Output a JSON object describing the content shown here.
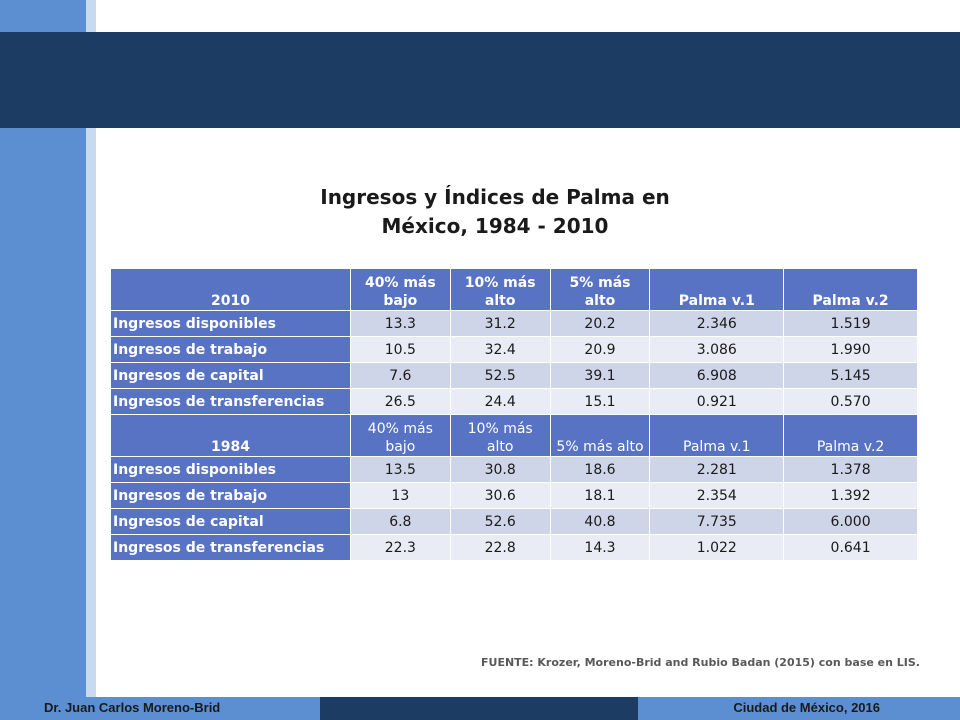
{
  "title": {
    "line1": "Ingresos y Índices de Palma en",
    "line2": "México, 1984 - 2010"
  },
  "table": {
    "col_headers": [
      "40% más bajo",
      "10% más alto",
      "5% más alto",
      "Palma v.1",
      "Palma v.2"
    ],
    "sections": [
      {
        "year": "2010",
        "rows": [
          {
            "label": "Ingresos disponibles",
            "values": [
              "13.3",
              "31.2",
              "20.2",
              "2.346",
              "1.519"
            ]
          },
          {
            "label": "Ingresos de trabajo",
            "values": [
              "10.5",
              "32.4",
              "20.9",
              "3.086",
              "1.990"
            ]
          },
          {
            "label": "Ingresos de capital",
            "values": [
              "7.6",
              "52.5",
              "39.1",
              "6.908",
              "5.145"
            ]
          },
          {
            "label": "Ingresos de transferencias",
            "values": [
              "26.5",
              "24.4",
              "15.1",
              "0.921",
              "0.570"
            ]
          }
        ]
      },
      {
        "year": "1984",
        "rows": [
          {
            "label": "Ingresos disponibles",
            "values": [
              "13.5",
              "30.8",
              "18.6",
              "2.281",
              "1.378"
            ]
          },
          {
            "label": "Ingresos de trabajo",
            "values": [
              "13",
              "30.6",
              "18.1",
              "2.354",
              "1.392"
            ]
          },
          {
            "label": "Ingresos de capital",
            "values": [
              "6.8",
              "52.6",
              "40.8",
              "7.735",
              "6.000"
            ]
          },
          {
            "label": "Ingresos de transferencias",
            "values": [
              "22.3",
              "22.8",
              "14.3",
              "1.022",
              "0.641"
            ]
          }
        ]
      }
    ]
  },
  "source": "FUENTE: Krozer, Moreno-Brid and Rubio Badan (2015) con base en LIS.",
  "footer": {
    "author": "Dr. Juan Carlos Moreno-Brid",
    "place_date": "Ciudad de México, 2016"
  },
  "colors": {
    "header_band": "#1d3c64",
    "left_bar": "#5b8fd1",
    "table_header": "#5873c4",
    "row_odd": "#cfd5e8",
    "row_even": "#e9ecf4"
  }
}
